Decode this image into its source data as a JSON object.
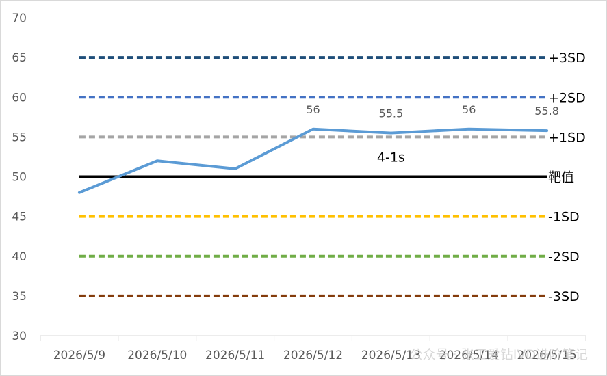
{
  "chart_data": {
    "type": "line",
    "title": "",
    "xlabel": "",
    "ylabel": "",
    "ylim": [
      30,
      70
    ],
    "yticks": [
      30,
      35,
      40,
      45,
      50,
      55,
      60,
      65,
      70
    ],
    "categories": [
      "2026/5/9",
      "2026/5/10",
      "2026/5/11",
      "2026/5/12",
      "2026/5/13",
      "2026/5/14",
      "2026/5/15"
    ],
    "grid": false,
    "series": [
      {
        "values": [
          48,
          52,
          51,
          56,
          55.5,
          56,
          55.8
        ],
        "color": "#5b9bd5",
        "data_labels": [
          "",
          "",
          "",
          "56",
          "55.5",
          "56",
          "55.8"
        ]
      }
    ],
    "reference_lines": [
      {
        "label": "+3SD",
        "value": 65,
        "color": "#1f4e79",
        "style": "dashed"
      },
      {
        "label": "+2SD",
        "value": 60,
        "color": "#4472c4",
        "style": "dashed"
      },
      {
        "label": "+1SD",
        "value": 55,
        "color": "#a5a5a5",
        "style": "dashed"
      },
      {
        "label": "靶值",
        "value": 50,
        "color": "#000000",
        "style": "solid"
      },
      {
        "label": "-1SD",
        "value": 45,
        "color": "#ffc000",
        "style": "dashed"
      },
      {
        "label": "-2SD",
        "value": 40,
        "color": "#70ad47",
        "style": "dashed"
      },
      {
        "label": "-3SD",
        "value": 35,
        "color": "#843c0c",
        "style": "dashed"
      }
    ],
    "annotations": [
      {
        "text": "4-1s",
        "category": "2026/5/13",
        "value": 52.5
      }
    ],
    "watermark": "公众号 · 张工爱钻IVD进阶笔记"
  }
}
